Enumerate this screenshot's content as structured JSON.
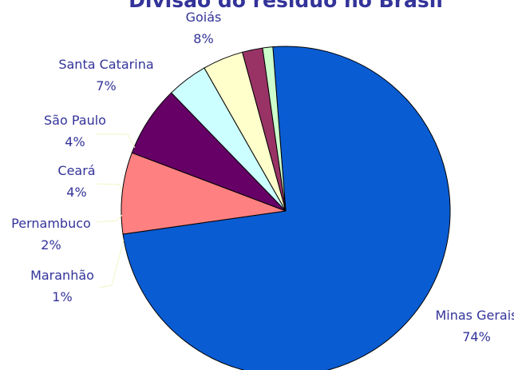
{
  "chart_data": {
    "type": "pie",
    "title": "Divisão do resíduo no Brasil",
    "unit": "%",
    "slices": [
      {
        "label": "Minas Gerais",
        "value": 74,
        "color": "#0a5cd2"
      },
      {
        "label": "Goiás",
        "value": 8,
        "color": "#ff8080"
      },
      {
        "label": "Santa Catarina",
        "value": 7,
        "color": "#660066"
      },
      {
        "label": "São Paulo",
        "value": 4,
        "color": "#ccffff"
      },
      {
        "label": "Ceará",
        "value": 4,
        "color": "#ffffcc"
      },
      {
        "label": "Pernambuco",
        "value": 2,
        "color": "#993366"
      },
      {
        "label": "Maranhão",
        "value": 1,
        "color": "#ccffcc"
      }
    ],
    "legend": "none"
  }
}
